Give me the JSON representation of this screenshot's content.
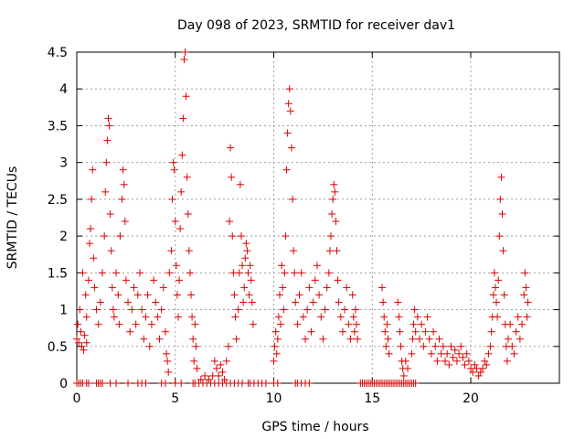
{
  "chart_data": {
    "type": "scatter",
    "title": "Day 098 of 2023, SRMTID for receiver dav1",
    "xlabel": "GPS time / hours",
    "ylabel": "SRMTID / TECUs",
    "xlim": [
      0,
      24.5
    ],
    "ylim": [
      0,
      4.5
    ],
    "xticks": [
      0,
      5,
      10,
      15,
      20
    ],
    "xtick_labels": [
      "0",
      "5",
      "10",
      "15",
      "20"
    ],
    "yticks": [
      0,
      0.5,
      1,
      1.5,
      2,
      2.5,
      3,
      3.5,
      4,
      4.5
    ],
    "ytick_labels": [
      "0",
      "0.5",
      "1",
      "1.5",
      "2",
      "2.5",
      "3",
      "3.5",
      "4",
      "4.5"
    ],
    "grid": true,
    "marker": "+",
    "series": [
      {
        "name": "SRMTID",
        "color": "#dd0000",
        "points": [
          [
            0.0,
            0.6
          ],
          [
            0.05,
            0.8
          ],
          [
            0.1,
            0.55
          ],
          [
            0.15,
            1.0
          ],
          [
            0.2,
            0.7
          ],
          [
            0.25,
            0.5
          ],
          [
            0.3,
            1.5
          ],
          [
            0.35,
            0.45
          ],
          [
            0.4,
            0.65
          ],
          [
            0.45,
            1.2
          ],
          [
            0.5,
            0.9
          ],
          [
            0.5,
            0.55
          ],
          [
            0.6,
            1.4
          ],
          [
            0.65,
            1.9
          ],
          [
            0.7,
            2.1
          ],
          [
            0.75,
            2.5
          ],
          [
            0.8,
            2.9
          ],
          [
            0.85,
            1.7
          ],
          [
            0.9,
            1.3
          ],
          [
            1.0,
            1.0
          ],
          [
            1.1,
            0.8
          ],
          [
            1.2,
            1.1
          ],
          [
            1.3,
            1.5
          ],
          [
            1.4,
            2.0
          ],
          [
            1.45,
            2.6
          ],
          [
            1.5,
            3.0
          ],
          [
            1.55,
            3.3
          ],
          [
            1.6,
            3.6
          ],
          [
            1.65,
            3.5
          ],
          [
            1.7,
            2.3
          ],
          [
            1.75,
            1.8
          ],
          [
            1.8,
            1.3
          ],
          [
            1.85,
            1.0
          ],
          [
            1.9,
            0.9
          ],
          [
            2.0,
            1.5
          ],
          [
            2.1,
            1.2
          ],
          [
            2.15,
            0.8
          ],
          [
            2.2,
            2.0
          ],
          [
            2.3,
            2.5
          ],
          [
            2.35,
            2.9
          ],
          [
            2.4,
            2.7
          ],
          [
            2.45,
            2.2
          ],
          [
            2.5,
            1.4
          ],
          [
            2.6,
            1.1
          ],
          [
            2.7,
            0.7
          ],
          [
            2.8,
            1.0
          ],
          [
            2.9,
            1.3
          ],
          [
            3.0,
            0.8
          ],
          [
            3.1,
            1.2
          ],
          [
            3.2,
            1.5
          ],
          [
            3.3,
            1.0
          ],
          [
            3.4,
            0.6
          ],
          [
            3.5,
            0.9
          ],
          [
            3.6,
            1.2
          ],
          [
            3.7,
            0.5
          ],
          [
            3.8,
            0.8
          ],
          [
            3.9,
            1.4
          ],
          [
            4.0,
            1.1
          ],
          [
            4.1,
            0.9
          ],
          [
            4.2,
            0.6
          ],
          [
            4.3,
            1.0
          ],
          [
            4.4,
            1.3
          ],
          [
            4.5,
            0.7
          ],
          [
            4.55,
            0.4
          ],
          [
            4.6,
            0.3
          ],
          [
            4.65,
            0.15
          ],
          [
            4.7,
            1.5
          ],
          [
            4.8,
            1.8
          ],
          [
            4.85,
            2.5
          ],
          [
            4.9,
            3.0
          ],
          [
            4.95,
            2.9
          ],
          [
            5.0,
            2.2
          ],
          [
            5.05,
            1.6
          ],
          [
            5.1,
            1.2
          ],
          [
            5.15,
            0.9
          ],
          [
            5.2,
            1.4
          ],
          [
            5.25,
            2.1
          ],
          [
            5.3,
            2.6
          ],
          [
            5.35,
            3.1
          ],
          [
            5.4,
            3.6
          ],
          [
            5.45,
            4.4
          ],
          [
            5.5,
            4.5
          ],
          [
            5.55,
            3.9
          ],
          [
            5.6,
            2.8
          ],
          [
            5.65,
            2.3
          ],
          [
            5.7,
            1.8
          ],
          [
            5.75,
            1.5
          ],
          [
            5.8,
            1.2
          ],
          [
            5.85,
            0.9
          ],
          [
            5.9,
            0.6
          ],
          [
            5.95,
            0.3
          ],
          [
            6.0,
            0.8
          ],
          [
            6.05,
            0.5
          ],
          [
            6.1,
            0.2
          ],
          [
            6.3,
            0.05
          ],
          [
            6.5,
            0.1
          ],
          [
            6.7,
            0.05
          ],
          [
            6.9,
            0.1
          ],
          [
            7.0,
            0.3
          ],
          [
            7.1,
            0.2
          ],
          [
            7.2,
            0.1
          ],
          [
            7.3,
            0.25
          ],
          [
            7.4,
            0.15
          ],
          [
            7.5,
            0.05
          ],
          [
            7.6,
            0.3
          ],
          [
            7.7,
            0.5
          ],
          [
            7.75,
            2.2
          ],
          [
            7.8,
            3.2
          ],
          [
            7.85,
            2.8
          ],
          [
            7.9,
            2.0
          ],
          [
            7.95,
            1.5
          ],
          [
            8.0,
            1.2
          ],
          [
            8.05,
            0.9
          ],
          [
            8.1,
            0.6
          ],
          [
            8.2,
            1.0
          ],
          [
            8.25,
            1.5
          ],
          [
            8.3,
            2.7
          ],
          [
            8.35,
            2.0
          ],
          [
            8.4,
            1.6
          ],
          [
            8.45,
            1.1
          ],
          [
            8.5,
            1.3
          ],
          [
            8.55,
            1.7
          ],
          [
            8.6,
            1.9
          ],
          [
            8.65,
            1.8
          ],
          [
            8.7,
            1.5
          ],
          [
            8.75,
            1.2
          ],
          [
            8.8,
            1.6
          ],
          [
            8.85,
            1.4
          ],
          [
            8.9,
            1.1
          ],
          [
            8.95,
            0.8
          ],
          [
            10.0,
            0.3
          ],
          [
            10.05,
            0.5
          ],
          [
            10.1,
            0.7
          ],
          [
            10.15,
            0.4
          ],
          [
            10.2,
            0.6
          ],
          [
            10.25,
            0.9
          ],
          [
            10.3,
            1.2
          ],
          [
            10.35,
            0.8
          ],
          [
            10.4,
            1.6
          ],
          [
            10.45,
            1.3
          ],
          [
            10.5,
            1.0
          ],
          [
            10.55,
            1.5
          ],
          [
            10.6,
            2.0
          ],
          [
            10.65,
            2.9
          ],
          [
            10.7,
            3.4
          ],
          [
            10.75,
            3.8
          ],
          [
            10.8,
            4.0
          ],
          [
            10.85,
            3.7
          ],
          [
            10.9,
            3.2
          ],
          [
            10.95,
            2.5
          ],
          [
            11.0,
            1.8
          ],
          [
            11.05,
            1.5
          ],
          [
            11.1,
            1.1
          ],
          [
            11.2,
            0.8
          ],
          [
            11.3,
            1.2
          ],
          [
            11.4,
            1.5
          ],
          [
            11.5,
            0.9
          ],
          [
            11.6,
            0.6
          ],
          [
            11.7,
            1.0
          ],
          [
            11.8,
            1.3
          ],
          [
            11.9,
            0.7
          ],
          [
            12.0,
            1.1
          ],
          [
            12.1,
            1.4
          ],
          [
            12.2,
            1.6
          ],
          [
            12.3,
            1.2
          ],
          [
            12.4,
            0.9
          ],
          [
            12.5,
            0.6
          ],
          [
            12.6,
            1.0
          ],
          [
            12.7,
            1.3
          ],
          [
            12.8,
            1.5
          ],
          [
            12.85,
            1.8
          ],
          [
            12.9,
            2.0
          ],
          [
            12.95,
            2.3
          ],
          [
            13.0,
            2.5
          ],
          [
            13.05,
            2.7
          ],
          [
            13.1,
            2.6
          ],
          [
            13.15,
            2.2
          ],
          [
            13.2,
            1.8
          ],
          [
            13.25,
            1.4
          ],
          [
            13.3,
            1.1
          ],
          [
            13.4,
            0.9
          ],
          [
            13.5,
            0.7
          ],
          [
            13.6,
            1.0
          ],
          [
            13.7,
            1.3
          ],
          [
            13.8,
            0.8
          ],
          [
            13.9,
            0.6
          ],
          [
            14.0,
            1.2
          ],
          [
            14.05,
            0.9
          ],
          [
            14.1,
            0.7
          ],
          [
            14.15,
            1.0
          ],
          [
            14.2,
            0.8
          ],
          [
            14.25,
            0.6
          ],
          [
            15.5,
            1.3
          ],
          [
            15.55,
            1.1
          ],
          [
            15.6,
            0.9
          ],
          [
            15.65,
            0.7
          ],
          [
            15.7,
            0.5
          ],
          [
            15.75,
            0.8
          ],
          [
            15.8,
            0.6
          ],
          [
            15.85,
            0.4
          ],
          [
            16.3,
            1.1
          ],
          [
            16.35,
            0.9
          ],
          [
            16.4,
            0.7
          ],
          [
            16.45,
            0.5
          ],
          [
            16.5,
            0.3
          ],
          [
            16.55,
            0.2
          ],
          [
            16.6,
            0.1
          ],
          [
            16.7,
            0.3
          ],
          [
            16.8,
            0.2
          ],
          [
            17.0,
            0.4
          ],
          [
            17.05,
            0.6
          ],
          [
            17.1,
            0.8
          ],
          [
            17.15,
            1.0
          ],
          [
            17.2,
            0.7
          ],
          [
            17.3,
            0.9
          ],
          [
            17.4,
            0.6
          ],
          [
            17.5,
            0.8
          ],
          [
            17.6,
            0.5
          ],
          [
            17.7,
            0.7
          ],
          [
            17.8,
            0.9
          ],
          [
            17.9,
            0.6
          ],
          [
            18.0,
            0.4
          ],
          [
            18.1,
            0.7
          ],
          [
            18.2,
            0.5
          ],
          [
            18.3,
            0.3
          ],
          [
            18.4,
            0.6
          ],
          [
            18.5,
            0.4
          ],
          [
            18.6,
            0.5
          ],
          [
            18.7,
            0.3
          ],
          [
            18.8,
            0.4
          ],
          [
            18.9,
            0.25
          ],
          [
            19.0,
            0.5
          ],
          [
            19.1,
            0.35
          ],
          [
            19.2,
            0.45
          ],
          [
            19.3,
            0.3
          ],
          [
            19.4,
            0.4
          ],
          [
            19.5,
            0.5
          ],
          [
            19.6,
            0.35
          ],
          [
            19.7,
            0.25
          ],
          [
            19.8,
            0.4
          ],
          [
            19.9,
            0.3
          ],
          [
            20.0,
            0.2
          ],
          [
            20.1,
            0.15
          ],
          [
            20.2,
            0.25
          ],
          [
            20.3,
            0.2
          ],
          [
            20.4,
            0.1
          ],
          [
            20.5,
            0.15
          ],
          [
            20.6,
            0.2
          ],
          [
            20.7,
            0.3
          ],
          [
            20.8,
            0.25
          ],
          [
            20.9,
            0.4
          ],
          [
            21.0,
            0.5
          ],
          [
            21.05,
            0.7
          ],
          [
            21.1,
            0.9
          ],
          [
            21.15,
            1.2
          ],
          [
            21.2,
            1.5
          ],
          [
            21.25,
            1.3
          ],
          [
            21.3,
            1.1
          ],
          [
            21.35,
            0.9
          ],
          [
            21.4,
            1.4
          ],
          [
            21.45,
            2.0
          ],
          [
            21.5,
            2.5
          ],
          [
            21.55,
            2.8
          ],
          [
            21.6,
            2.3
          ],
          [
            21.65,
            1.8
          ],
          [
            21.7,
            1.2
          ],
          [
            21.75,
            0.8
          ],
          [
            21.8,
            0.5
          ],
          [
            21.85,
            0.3
          ],
          [
            21.9,
            0.6
          ],
          [
            22.0,
            0.8
          ],
          [
            22.1,
            0.5
          ],
          [
            22.2,
            0.4
          ],
          [
            22.3,
            0.7
          ],
          [
            22.4,
            0.9
          ],
          [
            22.5,
            0.6
          ],
          [
            22.6,
            0.8
          ],
          [
            22.7,
            1.2
          ],
          [
            22.75,
            1.5
          ],
          [
            22.8,
            1.3
          ],
          [
            22.85,
            0.9
          ],
          [
            22.9,
            1.1
          ]
        ],
        "zero_points_x": [
          0.0,
          0.1,
          0.2,
          0.3,
          0.5,
          0.6,
          1.0,
          1.1,
          1.2,
          1.3,
          1.7,
          2.0,
          2.6,
          3.1,
          3.3,
          3.5,
          4.3,
          4.5,
          5.0,
          5.3,
          5.9,
          6.0,
          6.2,
          6.4,
          6.6,
          6.8,
          7.0,
          7.2,
          7.4,
          7.6,
          7.8,
          8.0,
          8.2,
          8.4,
          8.7,
          8.8,
          9.0,
          9.2,
          9.4,
          9.6,
          10.0,
          10.2,
          11.1,
          11.2,
          11.4,
          11.6,
          11.8,
          14.4,
          14.5,
          14.6,
          14.7,
          14.8,
          14.9,
          15.0,
          15.1,
          15.2,
          15.3,
          15.4,
          15.5,
          15.6,
          15.7,
          15.8,
          15.9,
          16.0,
          16.1,
          16.2,
          16.3,
          16.4,
          16.5,
          16.6,
          16.7,
          16.8,
          16.9,
          17.0,
          17.1,
          17.2
        ]
      }
    ]
  }
}
